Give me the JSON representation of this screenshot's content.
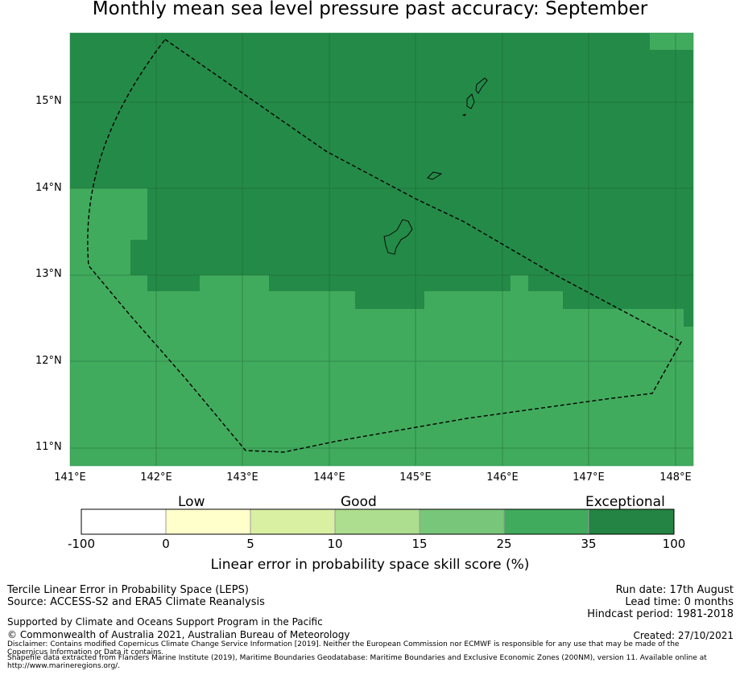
{
  "title": "Monthly mean sea level pressure past accuracy: September",
  "map": {
    "lat_ticks": [
      "15°N",
      "14°N",
      "13°N",
      "12°N",
      "11°N"
    ],
    "lon_ticks": [
      "141°E",
      "142°E",
      "143°E",
      "144°E",
      "145°E",
      "146°E",
      "147°E",
      "148°E"
    ],
    "colors": {
      "dark": "#248a48",
      "medium": "#41ab5d"
    }
  },
  "colorbar": {
    "categories": [
      "Low",
      "Good",
      "Exceptional"
    ],
    "ticks": [
      "-100",
      "0",
      "5",
      "10",
      "15",
      "25",
      "35",
      "100"
    ],
    "colors": [
      "#ffffff",
      "#ffffcc",
      "#d9f0a3",
      "#addd8e",
      "#78c679",
      "#41ab5d",
      "#238443"
    ],
    "label": "Linear error in probability space skill score (%)"
  },
  "footer": {
    "method": "Tercile Linear Error in Probability Space (LEPS)",
    "source": "Source: ACCESS-S2 and ERA5 Climate Reanalysis",
    "support": "Supported by Climate and Oceans Support Program in the Pacific",
    "copyright": "© Commonwealth of Australia 2021, Australian Bureau of Meteorology",
    "disclaimer": "Disclaimer: Contains modified Copernicus Climate Change Service Information [2019]. Neither the European Commission nor ECMWF is responsible for any use that may be made of the Copernicus Information or Data it contains.",
    "shapefile": "Shapefile data extracted from Flanders Marine Institute (2019), Maritime Boundaries Geodatabase: Maritime Boundaries and Exclusive Economic Zones (200NM), version 11. Available online at http://www.marineregions.org/.",
    "run_date": "Run date: 17th August",
    "lead_time": "Lead time: 0 months",
    "hindcast": "Hindcast period: 1981-2018",
    "created": "Created: 27/10/2021"
  }
}
